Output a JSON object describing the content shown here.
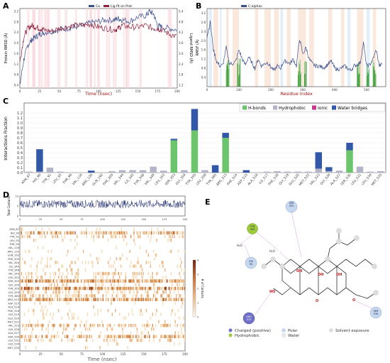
{
  "panels": {
    "A": {
      "letter": "A",
      "legend": [
        "Cα",
        "Lig fit on Prot"
      ],
      "xlabel": "Time (nsec)",
      "ylabel_left": "Protein RMSD (Å)",
      "ylabel_right": "Ligand RMSD (Å)",
      "xticks": [
        "0",
        "25",
        "50",
        "75",
        "100",
        "125",
        "150",
        "175",
        "200"
      ],
      "yticks_left": [
        "0.4",
        "0.8",
        "1.2",
        "1.6",
        "2.0",
        "2.4",
        "2.8",
        "3.2"
      ],
      "yticks_right": [
        "1.2",
        "1.8",
        "2.4",
        "3.0",
        "3.6",
        "4.2",
        "4.8",
        "5.4"
      ]
    },
    "B": {
      "letter": "B",
      "legend": [
        "C-alphas"
      ],
      "xlabel": "Residue Index",
      "ylabel": "RMSF (Å)",
      "xticks": [
        "0",
        "100",
        "200",
        "300",
        "400",
        "500"
      ],
      "yticks": [
        "0.4",
        "0.8",
        "1.2",
        "1.6",
        "2.0",
        "2.4",
        "2.8",
        "3.2"
      ]
    },
    "C": {
      "letter": "C",
      "ylabel": "Interactions Fraction",
      "legend": [
        "H-bonds",
        "Hydrophobic",
        "Ionic",
        "Water bridges"
      ]
    },
    "D": {
      "letter": "D",
      "top_ylabel": "Total Contacts",
      "xlabel": "Time (nsec)",
      "xticks": [
        "0",
        "25",
        "50",
        "75",
        "100",
        "125",
        "150",
        "175",
        "200"
      ],
      "colorbar_label": "# of Contacts"
    },
    "E": {
      "letter": "E",
      "residues": [
        {
          "label": "SER\n353",
          "name": "A\nSER\n353"
        },
        {
          "label": "TYR\n355",
          "name": "A\nTYR\n355"
        },
        {
          "label": "HIS\n90",
          "name": "A\nHIS\n90"
        },
        {
          "label": "SER\n530",
          "name": "A\nSER\n530"
        },
        {
          "label": "ARG\n513",
          "name": "A\nARG\n513"
        }
      ],
      "legend": [
        "Charged (positive)",
        "Hydrophobic",
        "Polar",
        "Water",
        "Solvent exposure"
      ]
    }
  },
  "chart_data": [
    {
      "type": "line",
      "panel": "A",
      "title": "",
      "xlabel": "Time (nsec)",
      "ylabel": "Protein RMSD (Å)",
      "xlim": [
        0,
        200
      ],
      "ylim": [
        0.4,
        3.2
      ],
      "series": [
        {
          "name": "Cα",
          "axis": "left",
          "color": "#3a4f8c",
          "x": [
            0,
            5,
            10,
            15,
            20,
            25,
            30,
            40,
            50,
            60,
            70,
            80,
            90,
            100,
            110,
            120,
            125,
            130,
            140,
            150,
            160,
            165,
            170,
            175,
            180,
            190,
            200
          ],
          "y": [
            0.5,
            1.4,
            1.9,
            2.1,
            2.2,
            2.3,
            2.35,
            2.4,
            2.45,
            2.5,
            2.55,
            2.6,
            2.7,
            2.75,
            2.8,
            2.8,
            2.85,
            2.8,
            2.75,
            2.9,
            2.95,
            3.1,
            3.0,
            2.6,
            2.55,
            2.5,
            2.45
          ]
        },
        {
          "name": "Lig fit on Prot",
          "axis": "right",
          "color": "#8c1f3a",
          "x": [
            0,
            5,
            10,
            15,
            20,
            25,
            30,
            40,
            50,
            60,
            70,
            80,
            90,
            100,
            110,
            120,
            125,
            130,
            140,
            150,
            160,
            170,
            175,
            180,
            190,
            200
          ],
          "y": [
            1.3,
            2.2,
            2.5,
            2.6,
            2.55,
            2.5,
            2.45,
            2.4,
            2.5,
            2.55,
            2.6,
            2.6,
            2.65,
            2.55,
            2.5,
            2.45,
            2.5,
            2.6,
            2.55,
            2.55,
            2.6,
            2.5,
            2.5,
            2.45,
            2.3,
            2.2
          ]
        }
      ]
    },
    {
      "type": "line",
      "panel": "B",
      "title": "",
      "xlabel": "Residue Index",
      "ylabel": "RMSF (Å)",
      "xlim": [
        0,
        560
      ],
      "ylim": [
        0.0,
        3.4
      ],
      "series": [
        {
          "name": "C-alphas",
          "color": "#3a4f8c",
          "x": [
            0,
            10,
            20,
            30,
            40,
            50,
            60,
            70,
            80,
            90,
            100,
            110,
            120,
            130,
            140,
            150,
            160,
            170,
            180,
            190,
            200,
            210,
            220,
            230,
            240,
            250,
            260,
            270,
            280,
            290,
            300,
            310,
            320,
            330,
            340,
            350,
            360,
            370,
            380,
            390,
            400,
            410,
            420,
            430,
            440,
            450,
            460,
            470,
            480,
            490,
            500,
            510,
            520,
            530,
            540,
            550
          ],
          "y": [
            2.2,
            2.8,
            1.6,
            1.1,
            0.9,
            0.95,
            1.7,
            1.0,
            1.0,
            1.1,
            1.6,
            1.2,
            0.95,
            1.3,
            1.05,
            0.8,
            1.2,
            0.9,
            1.0,
            1.05,
            0.85,
            0.7,
            0.9,
            0.8,
            1.1,
            1.1,
            1.0,
            1.2,
            0.9,
            2.1,
            1.4,
            1.7,
            1.2,
            1.0,
            0.9,
            0.9,
            0.85,
            0.85,
            1.0,
            1.1,
            0.8,
            0.75,
            0.8,
            0.9,
            0.8,
            0.7,
            0.9,
            0.95,
            1.05,
            1.9,
            0.9,
            0.95,
            1.2,
            1.6,
            0.9,
            1.0
          ]
        }
      ]
    },
    {
      "type": "bar",
      "panel": "C",
      "title": "",
      "ylabel": "Interactions Fraction",
      "ylim": [
        0,
        1.4
      ],
      "categories": [
        "ASN_87",
        "HIS_90",
        "TYR_91",
        "LEU_93",
        "THR_94",
        "VAL_116",
        "ARG_120",
        "GLN_192",
        "PHE_205",
        "VAL_344",
        "ILE_345",
        "TYR_348",
        "VAL_349",
        "LEU_352",
        "SER_353",
        "GLY_354",
        "TYR_355",
        "LEU_359",
        "TYR_385",
        "ARG_513",
        "PHE_514",
        "ASP_515",
        "ALA_516",
        "ILE_517",
        "PHE_518",
        "GLY_519",
        "GLU_520",
        "MET_522",
        "VAL_523",
        "GLY_526",
        "ALA_527",
        "SER_530",
        "LEU_531",
        "LEU_534",
        "MET_535"
      ],
      "series": [
        {
          "name": "H-bonds",
          "color": "#6cc46c",
          "values": [
            0,
            0,
            0,
            0,
            0,
            0,
            0,
            0,
            0,
            0,
            0,
            0,
            0,
            0,
            0.65,
            0,
            0.85,
            0,
            0,
            0.7,
            0,
            0,
            0,
            0,
            0,
            0,
            0,
            0,
            0,
            0,
            0,
            0.45,
            0,
            0,
            0
          ]
        },
        {
          "name": "Hydrophobic",
          "color": "#b4b4c8",
          "values": [
            0.02,
            0.02,
            0.1,
            0.02,
            0,
            0,
            0,
            0,
            0.03,
            0.05,
            0.05,
            0.05,
            0.12,
            0.04,
            0,
            0.05,
            0,
            0.05,
            0,
            0,
            0,
            0,
            0,
            0.02,
            0.03,
            0.02,
            0.02,
            0.02,
            0.08,
            0.03,
            0.04,
            0,
            0.12,
            0.02,
            0.03
          ]
        },
        {
          "name": "Ionic",
          "color": "#c43a8c",
          "values": [
            0,
            0,
            0,
            0,
            0,
            0,
            0,
            0,
            0,
            0,
            0,
            0,
            0,
            0,
            0,
            0,
            0,
            0,
            0,
            0,
            0,
            0,
            0,
            0,
            0,
            0,
            0,
            0,
            0,
            0,
            0,
            0,
            0,
            0,
            0
          ]
        },
        {
          "name": "Water bridges",
          "color": "#3458a8",
          "values": [
            0,
            0.45,
            0,
            0,
            0,
            0,
            0.04,
            0,
            0,
            0,
            0,
            0,
            0,
            0,
            0.03,
            0,
            0.43,
            0,
            0.15,
            0.1,
            0,
            0.05,
            0,
            0,
            0,
            0,
            0,
            0,
            0.33,
            0.08,
            0,
            0.15,
            0,
            0,
            0
          ]
        }
      ]
    },
    {
      "type": "heatmap",
      "panel": "D",
      "title": "",
      "xlabel": "Time (nsec)",
      "xlim": [
        0,
        200
      ],
      "top_series": {
        "name": "Total Contacts",
        "ylim": [
          0,
          10
        ],
        "yticks": [
          "0",
          "5",
          "10"
        ],
        "mean": 6
      },
      "rows": [
        "ASN_87",
        "HIS_90",
        "TYR_91",
        "LEU_93",
        "THR_94",
        "VAL_116",
        "ARG_120",
        "GLN_192",
        "PHE_205",
        "VAL_344",
        "ILE_345",
        "TYR_348",
        "VAL_349",
        "LEU_352",
        "SER_353",
        "GLY_354",
        "TYR_355",
        "LEU_359",
        "TYR_385",
        "ARG_513",
        "ASP_515",
        "ALA_516",
        "PHE_518",
        "GLY_519",
        "GLU_520",
        "MET_522",
        "VAL_523",
        "GLY_526",
        "ALA_527",
        "SER_530",
        "LEU_531",
        "LEU_534",
        "MET_535"
      ],
      "row_density": [
        0.05,
        0.6,
        0.3,
        0.1,
        0.05,
        0.02,
        0.1,
        0.05,
        0.1,
        0.15,
        0.15,
        0.1,
        0.3,
        0.2,
        0.8,
        0.2,
        0.85,
        0.25,
        0.4,
        0.75,
        0.1,
        0.05,
        0.1,
        0.1,
        0.1,
        0.1,
        0.5,
        0.15,
        0.1,
        0.6,
        0.3,
        0.05,
        0.05
      ],
      "colorbar": {
        "ticks": [
          "0",
          "1",
          "2",
          "3",
          "4"
        ],
        "min": 0,
        "max": 4
      }
    }
  ]
}
